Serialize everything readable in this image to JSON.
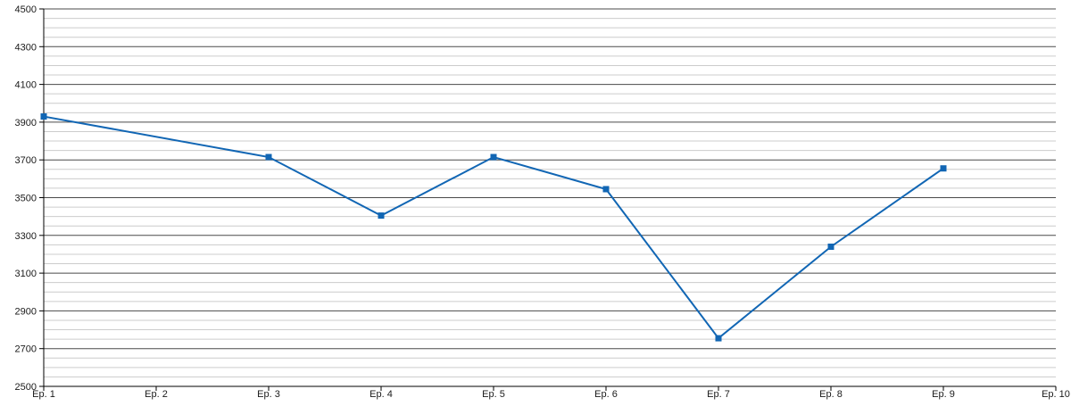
{
  "chart_data": {
    "type": "line",
    "title": "",
    "xlabel": "",
    "ylabel": "",
    "legend": "none",
    "grid": "horizontal major (dark) + horizontal minor (light)",
    "xlim": [
      1,
      10
    ],
    "ylim": [
      2500,
      4500
    ],
    "y_major_step": 200,
    "y_minor_step": 50,
    "y_tick_labels": [
      "2500",
      "2700",
      "2900",
      "3100",
      "3300",
      "3500",
      "3700",
      "3900",
      "4100",
      "4300",
      "4500"
    ],
    "x_tick_positions": [
      1,
      2,
      3,
      4,
      5,
      6,
      7,
      8,
      9,
      10
    ],
    "x_tick_labels": [
      "Ep. 1",
      "Ep. 2",
      "Ep. 3",
      "Ep. 4",
      "Ep. 5",
      "Ep. 6",
      "Ep. 7",
      "Ep. 8",
      "Ep. 9",
      "Ep. 10"
    ],
    "series": [
      {
        "name": "episode-values",
        "x": [
          1,
          3,
          4,
          5,
          6,
          7,
          8,
          9
        ],
        "values": [
          3930,
          3715,
          3405,
          3715,
          3545,
          2755,
          3240,
          3655
        ],
        "color": "#1166b4",
        "marker": "square",
        "marker_size": 7,
        "line_width": 2
      }
    ],
    "colors": {
      "major_gridline": "#4a4a4a",
      "minor_gridline": "#cccccc",
      "axis_line": "#000000",
      "tick_label": "#1a1a1a",
      "background": "#ffffff"
    }
  }
}
